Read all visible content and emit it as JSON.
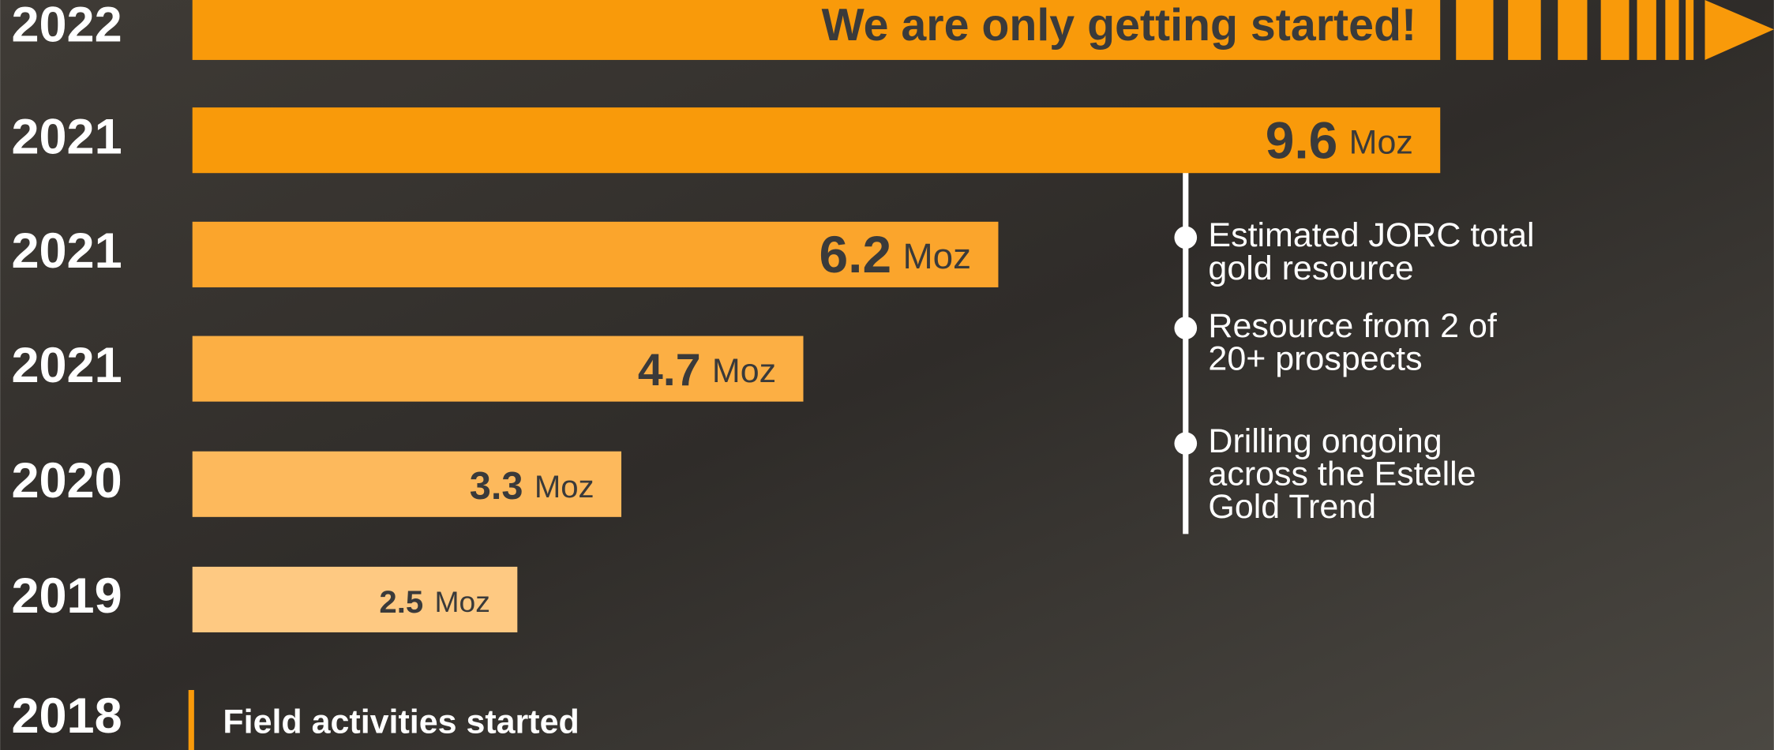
{
  "chart_data": {
    "type": "bar",
    "orientation": "horizontal",
    "banner": "We are only getting started!",
    "categories": [
      "2022",
      "2021",
      "2021",
      "2021",
      "2020",
      "2019",
      "2018"
    ],
    "values": [
      null,
      9.6,
      6.2,
      4.7,
      3.3,
      2.5,
      null
    ],
    "unit": "Moz",
    "colors": [
      "#f99a0a",
      "#f99a0a",
      "#fba52c",
      "#fcaf44",
      "#fdb95c",
      "#fec982",
      "#f99a0a"
    ],
    "xlim": [
      0,
      10
    ],
    "milestone": "Field activities started",
    "notes": [
      [
        "Estimated JORC total",
        "gold resource"
      ],
      [
        "Resource from 2 of",
        "20+ prospects"
      ],
      [
        "Drilling ongoing",
        "across the Estelle",
        "Gold Trend"
      ]
    ]
  }
}
